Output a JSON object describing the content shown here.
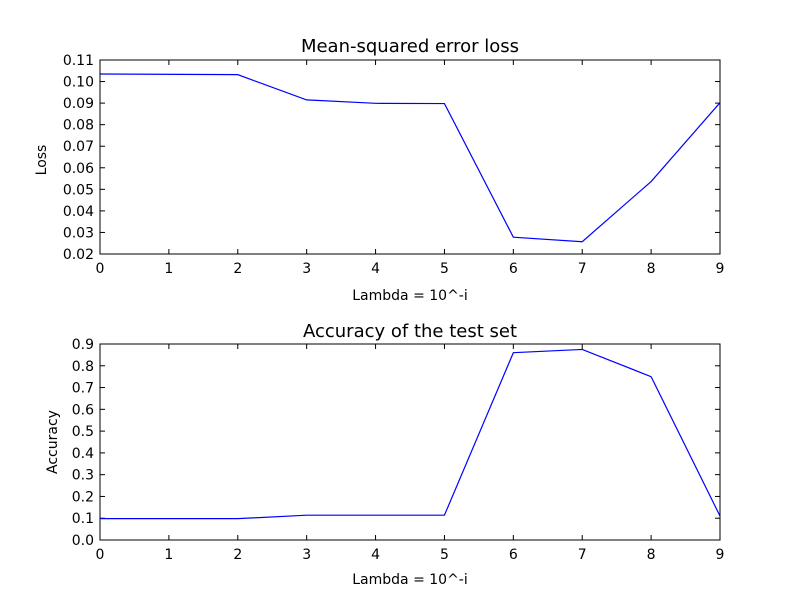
{
  "chart_data": [
    {
      "type": "line",
      "title": "Mean-squared error loss",
      "xlabel": "Lambda = 10^-i",
      "ylabel": "Loss",
      "xlim": [
        0,
        9
      ],
      "ylim": [
        0.02,
        0.11
      ],
      "xticks": [
        "0",
        "1",
        "2",
        "3",
        "4",
        "5",
        "6",
        "7",
        "8",
        "9"
      ],
      "yticks": [
        "0.02",
        "0.03",
        "0.04",
        "0.05",
        "0.06",
        "0.07",
        "0.08",
        "0.09",
        "0.10",
        "0.11"
      ],
      "grid": false,
      "color": "#0000ff",
      "series": [
        {
          "x": [
            0,
            2,
            3,
            4,
            5,
            6,
            7,
            8,
            9
          ],
          "values": [
            0.1035,
            0.1032,
            0.0915,
            0.0899,
            0.0898,
            0.0278,
            0.0257,
            0.0536,
            0.0902
          ]
        }
      ]
    },
    {
      "type": "line",
      "title": "Accuracy of the test set",
      "xlabel": "Lambda = 10^-i",
      "ylabel": "Accuracy",
      "xlim": [
        0,
        9
      ],
      "ylim": [
        0.0,
        0.9
      ],
      "xticks": [
        "0",
        "1",
        "2",
        "3",
        "4",
        "5",
        "6",
        "7",
        "8",
        "9"
      ],
      "yticks": [
        "0.0",
        "0.1",
        "0.2",
        "0.3",
        "0.4",
        "0.5",
        "0.6",
        "0.7",
        "0.8",
        "0.9"
      ],
      "grid": false,
      "color": "#0000ff",
      "series": [
        {
          "x": [
            0,
            2,
            3,
            5,
            6,
            7,
            8,
            9
          ],
          "values": [
            0.098,
            0.098,
            0.114,
            0.114,
            0.86,
            0.875,
            0.75,
            0.11
          ]
        }
      ]
    }
  ]
}
